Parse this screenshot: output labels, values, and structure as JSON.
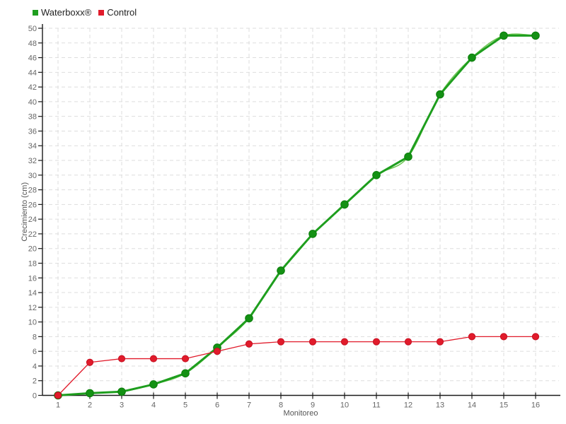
{
  "chart_data": {
    "type": "line",
    "title": "",
    "xlabel": "Monitoreo",
    "ylabel": "Crecimiento (cm)",
    "x": [
      1,
      2,
      3,
      4,
      5,
      6,
      7,
      8,
      9,
      10,
      11,
      12,
      13,
      14,
      15,
      16
    ],
    "y_ticks": [
      0,
      2,
      4,
      6,
      8,
      10,
      12,
      14,
      16,
      18,
      20,
      22,
      24,
      26,
      28,
      30,
      32,
      34,
      36,
      38,
      40,
      42,
      44,
      46,
      48,
      50
    ],
    "ylim": [
      0,
      50
    ],
    "grid": "dashed",
    "legend_position": "top-left",
    "series": [
      {
        "name": "Waterboxx®",
        "color": "#1e9e1e",
        "marker_fill": "#149114",
        "marker_stroke": "#0a7d0a",
        "line_width": 3,
        "marker_radius": 5.3,
        "smooth_shadow_color": "#5abf3c",
        "values": [
          0,
          0.3,
          0.5,
          1.5,
          3,
          6.5,
          10.5,
          17,
          22,
          26,
          30,
          32.5,
          41,
          46,
          49,
          49
        ]
      },
      {
        "name": "Control",
        "color": "#e11b2b",
        "marker_fill": "#e11b2b",
        "marker_stroke": "#c51022",
        "line_width": 1.3,
        "marker_radius": 4.6,
        "smooth_shadow_color": null,
        "values": [
          0,
          4.5,
          5,
          5,
          5,
          6,
          7,
          7.3,
          7.3,
          7.3,
          7.3,
          7.3,
          7.3,
          8,
          8,
          8
        ]
      }
    ]
  },
  "colors": {
    "background": "#ffffff",
    "grid": "#dddddd",
    "axis": "#1a1a1a",
    "tick_text": "#666666",
    "legend_text": "#222222"
  }
}
